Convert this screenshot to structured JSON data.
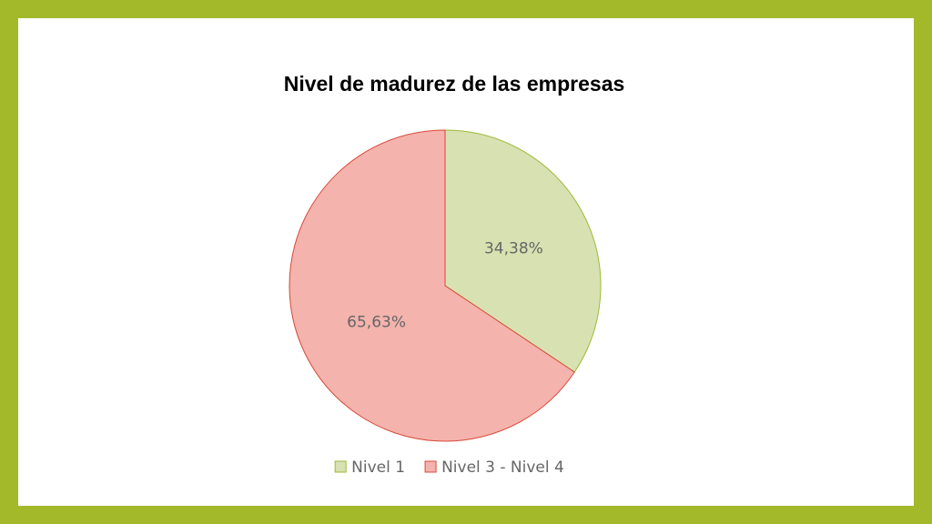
{
  "chart_data": {
    "type": "pie",
    "title": "Nivel de madurez de las empresas",
    "categories": [
      "Nivel 1",
      "Nivel 3 - Nivel 4"
    ],
    "values": [
      34.38,
      65.63
    ],
    "value_labels": [
      "34,38%",
      "65,63%"
    ],
    "colors": [
      "#d8e1b1",
      "#f4b3ac"
    ],
    "legend": "bottom"
  }
}
